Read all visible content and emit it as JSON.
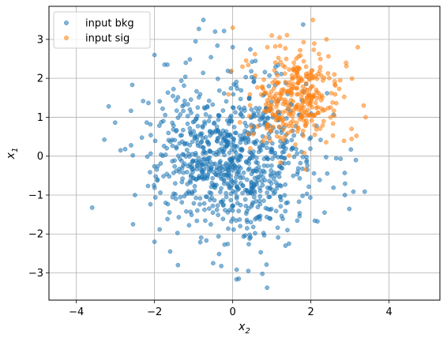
{
  "chart_data": {
    "type": "scatter",
    "xlabel": "x",
    "xlabel_sub": "2",
    "ylabel": "x",
    "ylabel_sub": "1",
    "xlim": [
      -4.7,
      5.3
    ],
    "ylim": [
      -3.7,
      3.85
    ],
    "xticks": [
      -4,
      -2,
      0,
      2,
      4
    ],
    "yticks": [
      -3,
      -2,
      -1,
      0,
      1,
      2,
      3
    ],
    "grid": true,
    "legend_position": "top-left",
    "series": [
      {
        "name": "input bkg",
        "color": "#1f77b4",
        "distribution": {
          "n": 900,
          "mean_x": 0.0,
          "mean_y": 0.0,
          "sd_x": 1.0,
          "sd_y": 1.0,
          "seed": 7
        },
        "points": [
          [
            -0.75,
            3.5
          ],
          [
            -2.0,
            2.6
          ],
          [
            -0.95,
            2.95
          ],
          [
            -2.75,
            0.18
          ],
          [
            -2.5,
            -1.0
          ],
          [
            -2.55,
            -1.75
          ],
          [
            -2.0,
            -2.2
          ],
          [
            -1.6,
            -2.45
          ],
          [
            -1.4,
            -2.8
          ],
          [
            0.4,
            -2.95
          ],
          [
            0.88,
            -3.38
          ],
          [
            2.87,
            -1.0
          ],
          [
            3.15,
            -0.1
          ],
          [
            2.35,
            -1.45
          ],
          [
            -0.45,
            3.2
          ],
          [
            -0.5,
            -2.75
          ],
          [
            1.4,
            -1.9
          ],
          [
            0.0,
            2.8
          ],
          [
            -1.2,
            2.4
          ],
          [
            1.35,
            -2.3
          ]
        ]
      },
      {
        "name": "input sig",
        "color": "#ff7f0e",
        "distribution": {
          "n": 320,
          "mean_x": 1.5,
          "mean_y": 1.5,
          "sd_x": 0.6,
          "sd_y": 0.6,
          "seed": 13
        },
        "points": [
          [
            0.0,
            3.3
          ],
          [
            2.05,
            3.5
          ],
          [
            3.35,
            1.3
          ],
          [
            3.4,
            1.0
          ],
          [
            0.45,
            0.2
          ],
          [
            1.0,
            3.1
          ],
          [
            2.4,
            3.0
          ],
          [
            3.2,
            2.8
          ],
          [
            2.75,
            1.95
          ],
          [
            2.9,
            2.4
          ],
          [
            0.25,
            2.3
          ],
          [
            2.1,
            0.55
          ],
          [
            1.8,
            0.65
          ],
          [
            1.2,
            3.05
          ],
          [
            2.6,
            2.1
          ]
        ]
      }
    ]
  }
}
